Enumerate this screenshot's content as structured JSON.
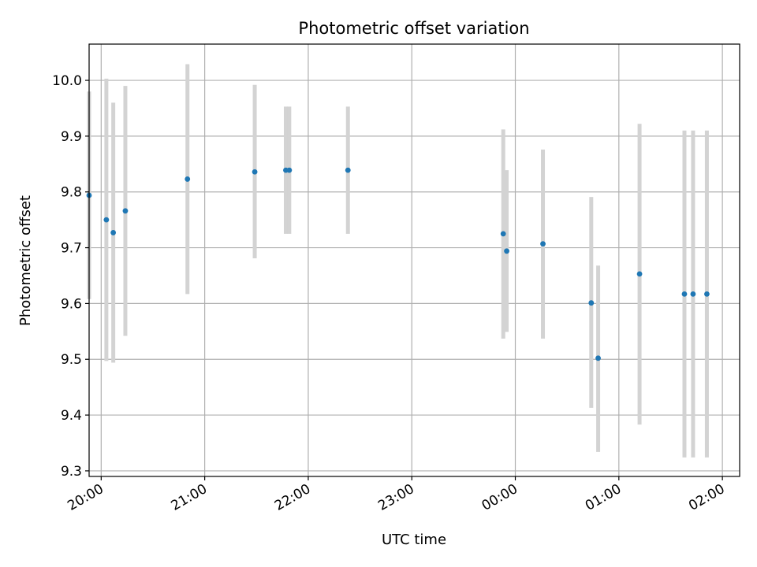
{
  "chart_data": {
    "type": "scatter",
    "title": "Photometric offset variation",
    "xlabel": "UTC time",
    "ylabel": "Photometric offset",
    "xlim": [
      "19:53",
      "02:10"
    ],
    "ylim": [
      9.29,
      10.065
    ],
    "grid": true,
    "x_ticks": [
      "20:00",
      "21:00",
      "22:00",
      "23:00",
      "00:00",
      "01:00",
      "02:00"
    ],
    "y_ticks": [
      "9.3",
      "9.4",
      "9.5",
      "9.6",
      "9.7",
      "9.8",
      "9.9",
      "10.0"
    ],
    "point_color": "#1f77b4",
    "errorbar_color": "#d3d3d3",
    "points": [
      {
        "x": "19:53",
        "y": 9.794,
        "yerr_low": 9.608,
        "yerr_high": 9.98
      },
      {
        "x": "20:03",
        "y": 9.75,
        "yerr_low": 9.497,
        "yerr_high": 10.003
      },
      {
        "x": "20:07",
        "y": 9.727,
        "yerr_low": 9.494,
        "yerr_high": 9.96
      },
      {
        "x": "20:14",
        "y": 9.766,
        "yerr_low": 9.542,
        "yerr_high": 9.99
      },
      {
        "x": "20:50",
        "y": 9.823,
        "yerr_low": 9.617,
        "yerr_high": 10.029
      },
      {
        "x": "21:29",
        "y": 9.836,
        "yerr_low": 9.681,
        "yerr_high": 9.992
      },
      {
        "x": "21:47",
        "y": 9.839,
        "yerr_low": 9.725,
        "yerr_high": 9.953
      },
      {
        "x": "21:49",
        "y": 9.839,
        "yerr_low": 9.725,
        "yerr_high": 9.953
      },
      {
        "x": "22:23",
        "y": 9.839,
        "yerr_low": 9.725,
        "yerr_high": 9.953
      },
      {
        "x": "23:53",
        "y": 9.725,
        "yerr_low": 9.537,
        "yerr_high": 9.912
      },
      {
        "x": "23:55",
        "y": 9.694,
        "yerr_low": 9.549,
        "yerr_high": 9.839
      },
      {
        "x": "00:16",
        "y": 9.707,
        "yerr_low": 9.537,
        "yerr_high": 9.876
      },
      {
        "x": "00:44",
        "y": 9.601,
        "yerr_low": 9.413,
        "yerr_high": 9.791
      },
      {
        "x": "00:48",
        "y": 9.502,
        "yerr_low": 9.334,
        "yerr_high": 9.668
      },
      {
        "x": "01:12",
        "y": 9.653,
        "yerr_low": 9.383,
        "yerr_high": 9.922
      },
      {
        "x": "01:38",
        "y": 9.617,
        "yerr_low": 9.324,
        "yerr_high": 9.91
      },
      {
        "x": "01:43",
        "y": 9.617,
        "yerr_low": 9.324,
        "yerr_high": 9.91
      },
      {
        "x": "01:51",
        "y": 9.617,
        "yerr_low": 9.324,
        "yerr_high": 9.91
      }
    ]
  }
}
